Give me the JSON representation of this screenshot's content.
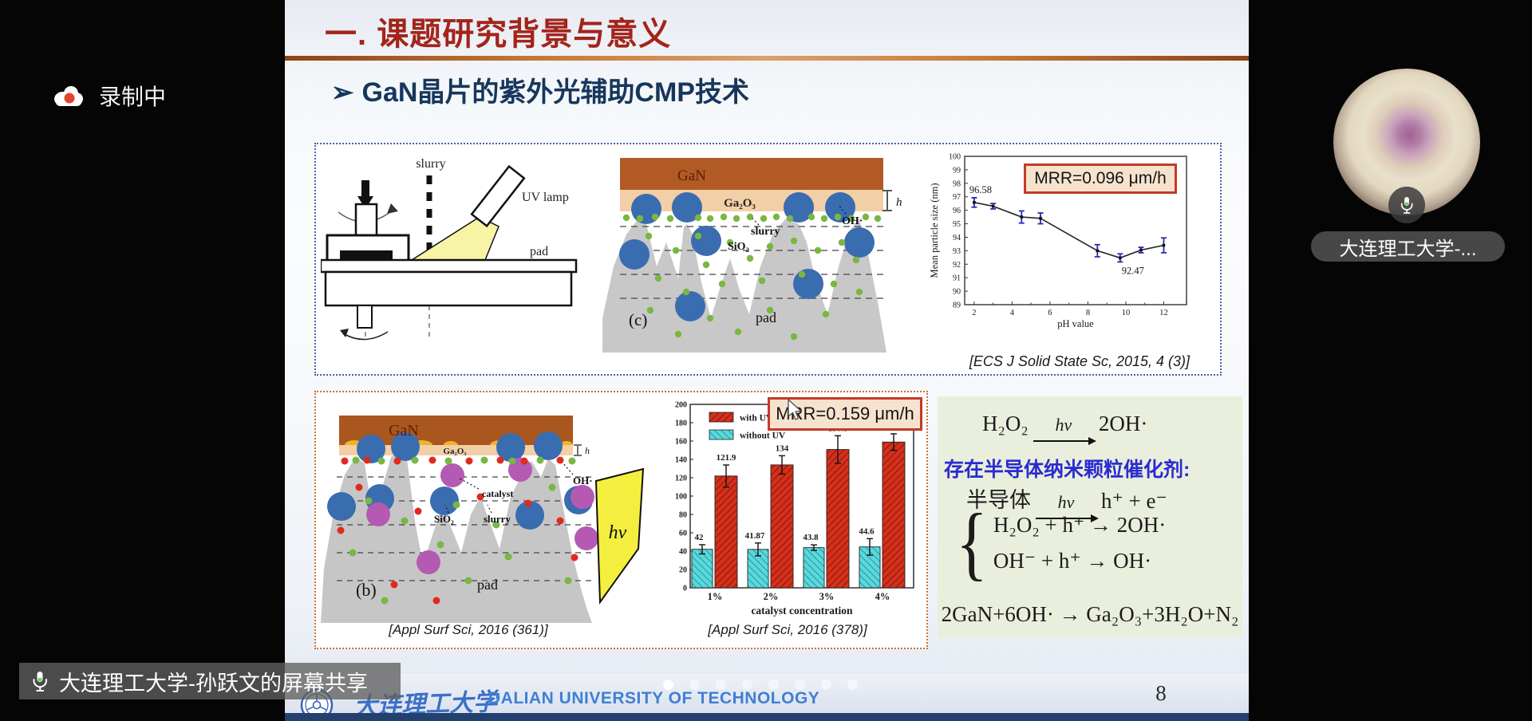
{
  "theme": {
    "title_color": "#a3241b",
    "subtitle_color": "#17365c",
    "top_box_border": "#4a5fa5",
    "bottom_box_border": "#c9722f",
    "chem_bg": "#e9efdc",
    "chem_note_color": "#2b2bd1",
    "footer_blue": "#3f7fd6",
    "bottom_bar": "#24406f"
  },
  "app": {
    "recording_label": "录制中",
    "participant_name": "大连理工大学-...",
    "share_label": "大连理工大学-孙跃文的屏幕共享"
  },
  "slide": {
    "title": "一. 课题研究背景与意义",
    "subtitle_bullet": "➢",
    "subtitle": "GaN晶片的紫外光辅助CMP技术",
    "page_number": "8",
    "pager": {
      "count": 8,
      "active_index": 0
    },
    "footer": {
      "university_cn": "大连理工大学",
      "university_en": "DALIAN UNIVERSITY OF TECHNOLOGY"
    },
    "citations": {
      "top": "[ECS J Solid State Sc, 2015, 4 (3)]",
      "bottom_left": "[Appl Surf Sci, 2016 (361)]",
      "bottom_mid": "[Appl Surf Sci, 2016 (378)]"
    },
    "figure_a": {
      "slurry": "slurry",
      "uv_lamp": "UV lamp",
      "pad": "pad"
    },
    "figure_c": {
      "gan": "GaN",
      "ga2o3": "Ga₂O₃",
      "h": "h",
      "oh": "OH·",
      "slurry": "slurry",
      "sio2": "SiO₂",
      "pad": "pad",
      "panel": "(c)"
    },
    "figure_b": {
      "gan": "GaN",
      "ga2o3": "Ga₂O₃",
      "h": "h",
      "oh": "OH·",
      "catalyst": "catalyst",
      "sio2": "SiO₂",
      "slurry": "slurry",
      "pad": "pad",
      "panel": "(b)",
      "hv": "hv"
    },
    "chemistry": {
      "eq1": {
        "left": "H₂O₂",
        "over": "hv",
        "right": "2OH·"
      },
      "note": "存在半导体纳米颗粒催化剂:",
      "eq2": {
        "left": "半导体",
        "over": "hv",
        "right": "h⁺ + e⁻"
      },
      "eq3a": "H₂O₂ + h⁺ →  2OH·",
      "eq3b": "OH⁻ + h⁺ →  OH·",
      "eq4": "2GaN+6OH· → Ga₂O₃+3H₂O+N₂"
    }
  },
  "chart_data": [
    {
      "type": "line",
      "annotation": "MRR=0.096 μm/h",
      "x": [
        2,
        3,
        4.5,
        5.5,
        8.5,
        9.7,
        10.8,
        12
      ],
      "y": [
        96.58,
        96.3,
        95.5,
        95.4,
        93.0,
        92.47,
        93.05,
        93.4
      ],
      "yerr": [
        0.35,
        0.2,
        0.45,
        0.4,
        0.45,
        0.3,
        0.2,
        0.55
      ],
      "first_label": "96.58",
      "min_label": "92.47",
      "xlabel": "pH value",
      "ylabel": "Mean particle size (nm)",
      "xlim": [
        1.5,
        13.2
      ],
      "ylim": [
        89,
        100
      ],
      "xticks": [
        2,
        4,
        6,
        8,
        10,
        12
      ],
      "xticks_minor": [
        3,
        5,
        7,
        9,
        11
      ],
      "line_color": "#2b2b2b",
      "error_color": "#2a2ab8"
    },
    {
      "type": "bar",
      "annotation": "MRR=0.159 μm/h",
      "categories": [
        "1%",
        "2%",
        "3%",
        "4%"
      ],
      "series": [
        {
          "name": "with UV",
          "color": "#d3311c",
          "hatch_color": "#8c130a",
          "values": [
            121.9,
            134,
            150.8,
            158.9
          ],
          "yerr": [
            12,
            10,
            15,
            9
          ]
        },
        {
          "name": "without UV",
          "color": "#5cd8dc",
          "hatch_color": "#1d9aa0",
          "values": [
            42,
            41.87,
            43.8,
            44.6
          ],
          "yerr": [
            5,
            7,
            3,
            9
          ]
        }
      ],
      "xlabel": "catalyst  concentration",
      "ylim": [
        0,
        200
      ],
      "ytick_step": 20,
      "legend_position": "top-left"
    }
  ]
}
